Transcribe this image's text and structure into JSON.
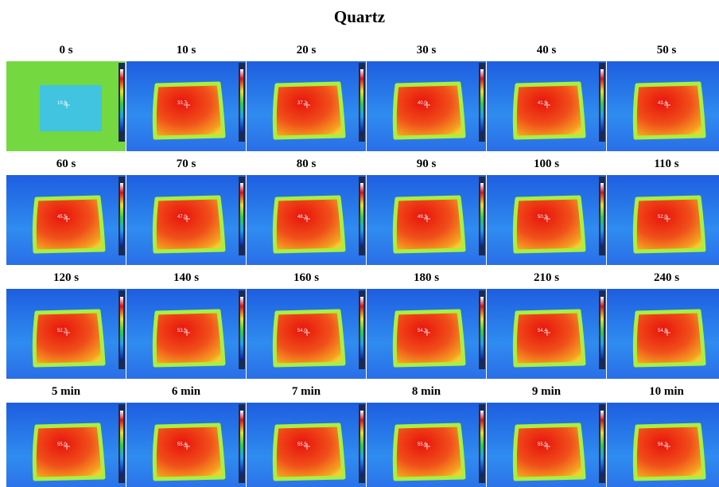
{
  "title": "Quartz",
  "panels": [
    {
      "time": "0 s",
      "reading": "19.6"
    },
    {
      "time": "10 s",
      "reading": "33.7"
    },
    {
      "time": "20 s",
      "reading": "37.2"
    },
    {
      "time": "30 s",
      "reading": "40.0"
    },
    {
      "time": "40 s",
      "reading": "41.9"
    },
    {
      "time": "50 s",
      "reading": "43.4"
    },
    {
      "time": "60 s",
      "reading": "45.5"
    },
    {
      "time": "70 s",
      "reading": "47.0"
    },
    {
      "time": "80 s",
      "reading": "48.1"
    },
    {
      "time": "90 s",
      "reading": "49.3"
    },
    {
      "time": "100 s",
      "reading": "50.3"
    },
    {
      "time": "110 s",
      "reading": "52.0"
    },
    {
      "time": "120 s",
      "reading": "52.7"
    },
    {
      "time": "140 s",
      "reading": "53.5"
    },
    {
      "time": "160 s",
      "reading": "54.0"
    },
    {
      "time": "180 s",
      "reading": "54.3"
    },
    {
      "time": "210 s",
      "reading": "54.4"
    },
    {
      "time": "240 s",
      "reading": "54.8"
    },
    {
      "time": "5 min",
      "reading": "55.0"
    },
    {
      "time": "6 min",
      "reading": "55.4"
    },
    {
      "time": "7 min",
      "reading": "55.5"
    },
    {
      "time": "8 min",
      "reading": "55.6"
    },
    {
      "time": "9 min",
      "reading": "55.5"
    },
    {
      "time": "10 min",
      "reading": "56.2"
    }
  ]
}
